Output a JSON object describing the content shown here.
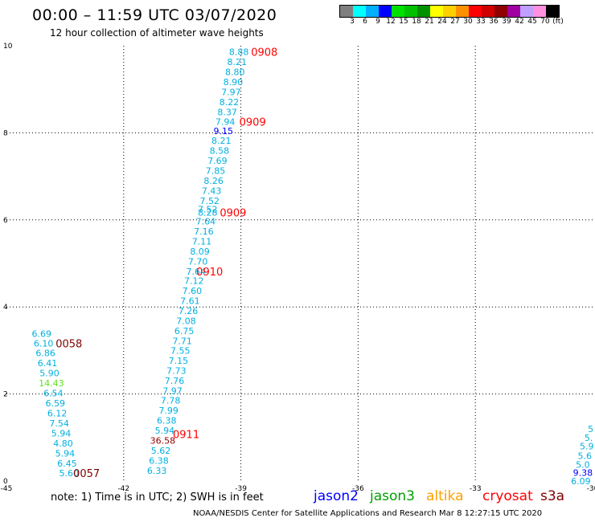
{
  "title": "00:00 – 11:59 UTC 03/07/2020",
  "subtitle": "12 hour collection of altimeter wave heights",
  "legend": {
    "colors": [
      "#7f7f7f",
      "#00ffff",
      "#00b0ff",
      "#0000ff",
      "#00e000",
      "#00c000",
      "#009000",
      "#ffff00",
      "#ffd000",
      "#ff9000",
      "#ff0000",
      "#d00000",
      "#900000",
      "#a000a0",
      "#c0a0ff",
      "#ff90e0",
      "#000000"
    ],
    "labels": [
      "3",
      "6",
      "9",
      "12",
      "15",
      "18",
      "21",
      "24",
      "27",
      "30",
      "33",
      "36",
      "39",
      "42",
      "45",
      "70",
      "(ft)"
    ]
  },
  "chart_data": {
    "type": "scatter",
    "xlim": [
      -45,
      -30
    ],
    "ylim": [
      0,
      10
    ],
    "x_ticks": [
      {
        "value": -45,
        "label": "-45"
      },
      {
        "value": -42,
        "label": "-42"
      },
      {
        "value": -39,
        "label": "-39"
      },
      {
        "value": -36,
        "label": "-36"
      },
      {
        "value": -33,
        "label": "-33"
      },
      {
        "value": -30,
        "label": "-30"
      }
    ],
    "y_ticks": [
      {
        "value": 0,
        "label": "0"
      },
      {
        "value": 2,
        "label": "2"
      },
      {
        "value": 4,
        "label": "4"
      },
      {
        "value": 6,
        "label": "6"
      },
      {
        "value": 8,
        "label": "8"
      },
      {
        "value": 10,
        "label": "10"
      }
    ],
    "grid": true,
    "points": [
      {
        "lon": -39.05,
        "lat": 9.86,
        "text": "8.88",
        "color": "#00b0e0"
      },
      {
        "lon": -39.1,
        "lat": 9.63,
        "text": "8.21",
        "color": "#00b0e0"
      },
      {
        "lon": -39.15,
        "lat": 9.4,
        "text": "8.80",
        "color": "#00b0e0"
      },
      {
        "lon": -39.2,
        "lat": 9.17,
        "text": "8.90",
        "color": "#00b0e0"
      },
      {
        "lon": -39.25,
        "lat": 8.94,
        "text": "7.97",
        "color": "#00b0e0"
      },
      {
        "lon": -39.3,
        "lat": 8.71,
        "text": "8.22",
        "color": "#00b0e0"
      },
      {
        "lon": -39.35,
        "lat": 8.48,
        "text": "8.37",
        "color": "#00b0e0"
      },
      {
        "lon": -39.4,
        "lat": 8.26,
        "text": "7.94",
        "color": "#00b0e0"
      },
      {
        "lon": -39.45,
        "lat": 8.04,
        "text": "9.15",
        "color": "#0000ff"
      },
      {
        "lon": -39.5,
        "lat": 7.82,
        "text": "8.21",
        "color": "#00b0e0"
      },
      {
        "lon": -39.55,
        "lat": 7.59,
        "text": "8.58",
        "color": "#00b0e0"
      },
      {
        "lon": -39.6,
        "lat": 7.36,
        "text": "7.69",
        "color": "#00b0e0"
      },
      {
        "lon": -39.65,
        "lat": 7.13,
        "text": "7.85",
        "color": "#00b0e0"
      },
      {
        "lon": -39.7,
        "lat": 6.9,
        "text": "8.26",
        "color": "#00b0e0"
      },
      {
        "lon": -39.75,
        "lat": 6.67,
        "text": "7.43",
        "color": "#00b0e0"
      },
      {
        "lon": -39.8,
        "lat": 6.44,
        "text": "7.52",
        "color": "#00b0e0"
      },
      {
        "lon": -39.85,
        "lat": 6.25,
        "text": "7.52",
        "color": "#00b0e0"
      },
      {
        "lon": -39.85,
        "lat": 6.17,
        "text": "8.28",
        "color": "#00b0e0"
      },
      {
        "lon": -39.9,
        "lat": 5.97,
        "text": "7.64",
        "color": "#00b0e0"
      },
      {
        "lon": -39.95,
        "lat": 5.74,
        "text": "7.16",
        "color": "#00b0e0"
      },
      {
        "lon": -40.0,
        "lat": 5.51,
        "text": "7.11",
        "color": "#00b0e0"
      },
      {
        "lon": -40.05,
        "lat": 5.28,
        "text": "8.09",
        "color": "#00b0e0"
      },
      {
        "lon": -40.1,
        "lat": 5.05,
        "text": "7.70",
        "color": "#00b0e0"
      },
      {
        "lon": -40.15,
        "lat": 4.82,
        "text": "7.64",
        "color": "#00b0e0"
      },
      {
        "lon": -40.2,
        "lat": 4.6,
        "text": "7.12",
        "color": "#00b0e0"
      },
      {
        "lon": -40.25,
        "lat": 4.37,
        "text": "7.60",
        "color": "#00b0e0"
      },
      {
        "lon": -40.3,
        "lat": 4.14,
        "text": "7.61",
        "color": "#00b0e0"
      },
      {
        "lon": -40.35,
        "lat": 3.91,
        "text": "7.26",
        "color": "#00b0e0"
      },
      {
        "lon": -40.4,
        "lat": 3.68,
        "text": "7.08",
        "color": "#00b0e0"
      },
      {
        "lon": -40.45,
        "lat": 3.45,
        "text": "6.75",
        "color": "#00b0e0"
      },
      {
        "lon": -40.5,
        "lat": 3.22,
        "text": "7.71",
        "color": "#00b0e0"
      },
      {
        "lon": -40.55,
        "lat": 3.0,
        "text": "7.55",
        "color": "#00b0e0"
      },
      {
        "lon": -40.6,
        "lat": 2.77,
        "text": "7.15",
        "color": "#00b0e0"
      },
      {
        "lon": -40.65,
        "lat": 2.54,
        "text": "7.73",
        "color": "#00b0e0"
      },
      {
        "lon": -40.7,
        "lat": 2.31,
        "text": "7.76",
        "color": "#00b0e0"
      },
      {
        "lon": -40.75,
        "lat": 2.08,
        "text": "7.97",
        "color": "#00b0e0"
      },
      {
        "lon": -40.8,
        "lat": 1.85,
        "text": "7.78",
        "color": "#00b0e0"
      },
      {
        "lon": -40.85,
        "lat": 1.62,
        "text": "7.99",
        "color": "#00b0e0"
      },
      {
        "lon": -40.9,
        "lat": 1.39,
        "text": "6.38",
        "color": "#00b0e0"
      },
      {
        "lon": -40.95,
        "lat": 1.16,
        "text": "5.94",
        "color": "#00b0e0"
      },
      {
        "lon": -41.0,
        "lat": 0.93,
        "text": "36.58",
        "color": "#900000"
      },
      {
        "lon": -41.05,
        "lat": 0.7,
        "text": "5.62",
        "color": "#00b0e0"
      },
      {
        "lon": -41.1,
        "lat": 0.47,
        "text": "6.38",
        "color": "#00b0e0"
      },
      {
        "lon": -41.15,
        "lat": 0.24,
        "text": "6.33",
        "color": "#00b0e0"
      },
      {
        "lon": -44.1,
        "lat": 3.39,
        "text": "6.69",
        "color": "#00b0e0"
      },
      {
        "lon": -44.05,
        "lat": 3.16,
        "text": "6.10",
        "color": "#00b0e0"
      },
      {
        "lon": -44.0,
        "lat": 2.94,
        "text": "6.86",
        "color": "#00b0e0"
      },
      {
        "lon": -43.95,
        "lat": 2.71,
        "text": "6.41",
        "color": "#00b0e0"
      },
      {
        "lon": -43.9,
        "lat": 2.48,
        "text": "5.90",
        "color": "#00b0e0"
      },
      {
        "lon": -43.85,
        "lat": 2.25,
        "text": "14.43",
        "color": "#60e020"
      },
      {
        "lon": -43.8,
        "lat": 2.02,
        "text": "6.54",
        "color": "#00b0e0"
      },
      {
        "lon": -43.75,
        "lat": 1.79,
        "text": "6.59",
        "color": "#00b0e0"
      },
      {
        "lon": -43.7,
        "lat": 1.56,
        "text": "6.12",
        "color": "#00b0e0"
      },
      {
        "lon": -43.65,
        "lat": 1.33,
        "text": "7.54",
        "color": "#00b0e0"
      },
      {
        "lon": -43.6,
        "lat": 1.1,
        "text": "5.94",
        "color": "#00b0e0"
      },
      {
        "lon": -43.55,
        "lat": 0.87,
        "text": "4.80",
        "color": "#00b0e0"
      },
      {
        "lon": -43.5,
        "lat": 0.64,
        "text": "5.94",
        "color": "#00b0e0"
      },
      {
        "lon": -43.45,
        "lat": 0.41,
        "text": "6.45",
        "color": "#00b0e0"
      },
      {
        "lon": -43.4,
        "lat": 0.18,
        "text": "5.60",
        "color": "#00b0e0"
      },
      {
        "lon": -30.05,
        "lat": 1.2,
        "text": "5",
        "color": "#00b0e0"
      },
      {
        "lon": -30.1,
        "lat": 1.0,
        "text": "5.",
        "color": "#00b0e0"
      },
      {
        "lon": -30.15,
        "lat": 0.8,
        "text": "5.9",
        "color": "#00b0e0"
      },
      {
        "lon": -30.2,
        "lat": 0.58,
        "text": "5.6",
        "color": "#00b0e0"
      },
      {
        "lon": -30.25,
        "lat": 0.38,
        "text": "5.0",
        "color": "#00b0e0"
      },
      {
        "lon": -30.25,
        "lat": 0.19,
        "text": "9.38",
        "color": "#0000ff"
      },
      {
        "lon": -30.3,
        "lat": 0.0,
        "text": "6.09",
        "color": "#00b0e0"
      }
    ],
    "time_labels": [
      {
        "lon": -38.4,
        "lat": 9.86,
        "text": "0908",
        "color": "#ff0000"
      },
      {
        "lon": -38.7,
        "lat": 8.26,
        "text": "0909",
        "color": "#ff0000"
      },
      {
        "lon": -39.2,
        "lat": 6.17,
        "text": "0909",
        "color": "#ff0000"
      },
      {
        "lon": -39.8,
        "lat": 4.82,
        "text": "0910",
        "color": "#ff0000"
      },
      {
        "lon": -40.4,
        "lat": 1.08,
        "text": "0911",
        "color": "#ff0000"
      },
      {
        "lon": -43.4,
        "lat": 3.16,
        "text": "0058",
        "color": "#800000"
      },
      {
        "lon": -42.95,
        "lat": 0.18,
        "text": "0057",
        "color": "#800000"
      }
    ]
  },
  "note": "note:  1) Time is in UTC; 2) SWH is in feet",
  "satellites": [
    {
      "name": "jason2",
      "color": "#0000ff"
    },
    {
      "name": "jason3",
      "color": "#00a000"
    },
    {
      "name": "altika",
      "color": "#ffa000"
    },
    {
      "name": "cryosat",
      "color": "#ff0000"
    },
    {
      "name": "s3a",
      "color": "#800000"
    }
  ],
  "credit": "NOAA/NESDIS Center for Satellite Applications and Research    Mar  8 12:27:15 UTC 2020"
}
